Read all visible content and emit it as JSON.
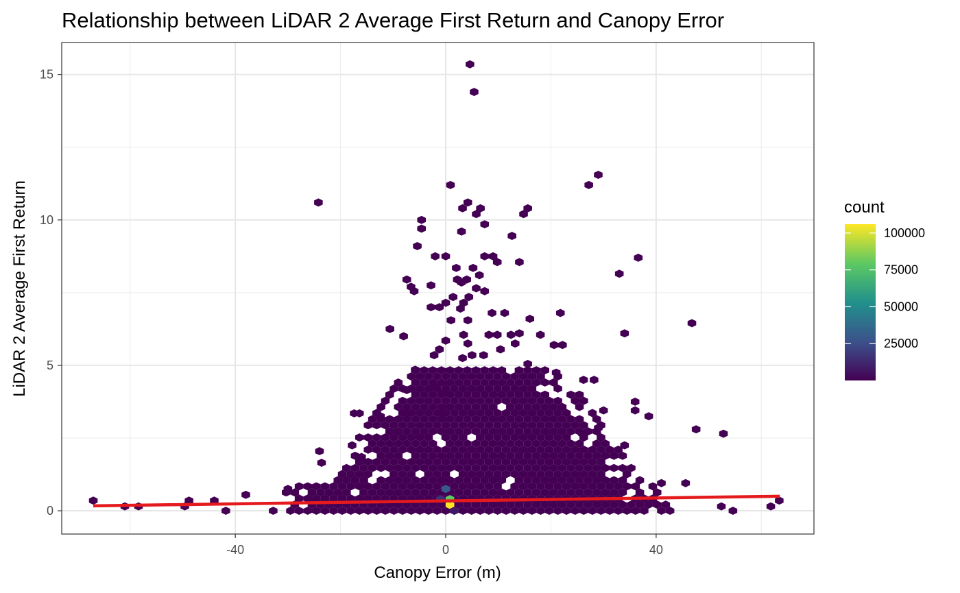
{
  "chart_data": {
    "type": "hexbin",
    "title": "Relationship between LiDAR 2 Average First Return and Canopy Error",
    "xlabel": "Canopy Error (m)",
    "ylabel": "LiDAR 2 Average First Return",
    "xlim": [
      -73,
      70
    ],
    "ylim": [
      -0.8,
      16.1
    ],
    "x_ticks": [
      -40,
      0,
      40
    ],
    "y_ticks": [
      0,
      5,
      10,
      15
    ],
    "x_tick_labels": [
      "-40",
      "0",
      "40"
    ],
    "y_tick_labels": [
      "0",
      "5",
      "10",
      "15"
    ],
    "grid": true,
    "legend": {
      "title": "count",
      "position": "right",
      "min": 1,
      "max": 106000,
      "breaks": [
        25000,
        50000,
        75000,
        100000
      ],
      "break_labels": [
        "25000",
        "50000",
        "75000",
        "100000"
      ],
      "colors": [
        "#440154",
        "#3b528b",
        "#21918c",
        "#5ec962",
        "#fde725"
      ]
    },
    "trend_line": {
      "color": "#e41a1c",
      "x": [
        -67,
        63.5
      ],
      "y": [
        0.17,
        0.5
      ]
    },
    "scatter_points": [
      [
        4.6,
        15.35
      ],
      [
        5.4,
        14.4
      ],
      [
        0.9,
        11.2
      ],
      [
        -24.2,
        10.6
      ],
      [
        29.0,
        11.55
      ],
      [
        27.2,
        11.2
      ],
      [
        3.2,
        10.4
      ],
      [
        4.2,
        10.6
      ],
      [
        5.8,
        10.2
      ],
      [
        6.6,
        10.4
      ],
      [
        15.6,
        10.4
      ],
      [
        14.8,
        10.2
      ],
      [
        -4.6,
        10.0
      ],
      [
        -4.6,
        9.7
      ],
      [
        7.4,
        9.85
      ],
      [
        3.0,
        9.6
      ],
      [
        12.6,
        9.45
      ],
      [
        -5.4,
        9.1
      ],
      [
        -2.0,
        8.75
      ],
      [
        0.0,
        8.75
      ],
      [
        7.4,
        8.75
      ],
      [
        9.0,
        8.75
      ],
      [
        9.8,
        8.55
      ],
      [
        14.0,
        8.55
      ],
      [
        36.6,
        8.7
      ],
      [
        5.2,
        8.35
      ],
      [
        2.0,
        8.35
      ],
      [
        6.4,
        8.1
      ],
      [
        33.0,
        8.15
      ],
      [
        2.2,
        7.95
      ],
      [
        3.0,
        7.85
      ],
      [
        4.0,
        7.95
      ],
      [
        -7.4,
        7.95
      ],
      [
        -6.6,
        7.7
      ],
      [
        -6.0,
        7.55
      ],
      [
        -2.8,
        7.75
      ],
      [
        5.8,
        7.65
      ],
      [
        7.4,
        7.55
      ],
      [
        1.4,
        7.35
      ],
      [
        0.0,
        7.15
      ],
      [
        4.4,
        7.35
      ],
      [
        3.4,
        7.15
      ],
      [
        -2.8,
        7.0
      ],
      [
        -1.2,
        7.0
      ],
      [
        2.8,
        6.95
      ],
      [
        8.8,
        6.8
      ],
      [
        11.2,
        6.8
      ],
      [
        21.8,
        6.8
      ],
      [
        1.0,
        6.55
      ],
      [
        4.2,
        6.55
      ],
      [
        16.0,
        6.6
      ],
      [
        46.8,
        6.45
      ],
      [
        -10.6,
        6.25
      ],
      [
        -8.0,
        6.0
      ],
      [
        3.4,
        6.05
      ],
      [
        8.2,
        6.05
      ],
      [
        9.8,
        6.05
      ],
      [
        12.4,
        6.05
      ],
      [
        34.0,
        6.1
      ],
      [
        14.0,
        6.1
      ],
      [
        18.0,
        6.05
      ],
      [
        0.0,
        5.85
      ],
      [
        4.2,
        5.75
      ],
      [
        13.2,
        5.75
      ],
      [
        20.6,
        5.7
      ],
      [
        22.2,
        5.7
      ],
      [
        -2.2,
        5.35
      ],
      [
        -1.2,
        5.55
      ],
      [
        10.4,
        5.55
      ],
      [
        3.2,
        5.25
      ],
      [
        5.0,
        5.35
      ],
      [
        7.2,
        5.35
      ],
      [
        -5.8,
        4.85
      ],
      [
        15.6,
        5.05
      ],
      [
        -2.0,
        4.25
      ],
      [
        -7.4,
        4.15
      ],
      [
        -0.4,
        4.05
      ],
      [
        26.2,
        4.5
      ],
      [
        28.2,
        4.5
      ],
      [
        21.0,
        4.75
      ],
      [
        -17.4,
        3.35
      ],
      [
        -16.4,
        3.35
      ],
      [
        -12.4,
        3.25
      ],
      [
        -7.4,
        3.35
      ],
      [
        -0.6,
        3.35
      ],
      [
        36.0,
        3.75
      ],
      [
        30.0,
        3.45
      ],
      [
        36.0,
        3.45
      ],
      [
        38.6,
        3.25
      ],
      [
        -24.0,
        2.05
      ],
      [
        -23.6,
        1.65
      ],
      [
        -17.8,
        2.25
      ],
      [
        -16.0,
        1.85
      ],
      [
        47.6,
        2.8
      ],
      [
        52.8,
        2.65
      ],
      [
        29.0,
        2.85
      ],
      [
        26.0,
        2.65
      ],
      [
        34.0,
        2.25
      ],
      [
        41.0,
        0.95
      ],
      [
        45.6,
        0.95
      ],
      [
        -67.0,
        0.35
      ],
      [
        -61.0,
        0.15
      ],
      [
        -58.4,
        0.15
      ],
      [
        -49.6,
        0.15
      ],
      [
        -48.8,
        0.35
      ],
      [
        -44.0,
        0.35
      ],
      [
        -41.8,
        0.0
      ],
      [
        -38.0,
        0.55
      ],
      [
        -30.0,
        0.75
      ],
      [
        61.8,
        0.15
      ],
      [
        63.4,
        0.35
      ],
      [
        52.4,
        0.15
      ],
      [
        54.6,
        0.0
      ]
    ],
    "core_bins": "density of hexagonal bins (rows every 0.2 units, columns every ~1.6 m) filling the central envelope; peak bin near (0.8, 0.2) at about 106000 counts, secondary high-count bin near (0, 0.75)",
    "high_count_bins": [
      {
        "x": 0.8,
        "y": 0.2,
        "count": 106000
      },
      {
        "x": 0.0,
        "y": 0.75,
        "count": 30000
      },
      {
        "x": 0.8,
        "y": 0.4,
        "count": 80000
      },
      {
        "x": -1.0,
        "y": 0.4,
        "count": 15000
      },
      {
        "x": 1.6,
        "y": 0.0,
        "count": 8000
      }
    ]
  }
}
